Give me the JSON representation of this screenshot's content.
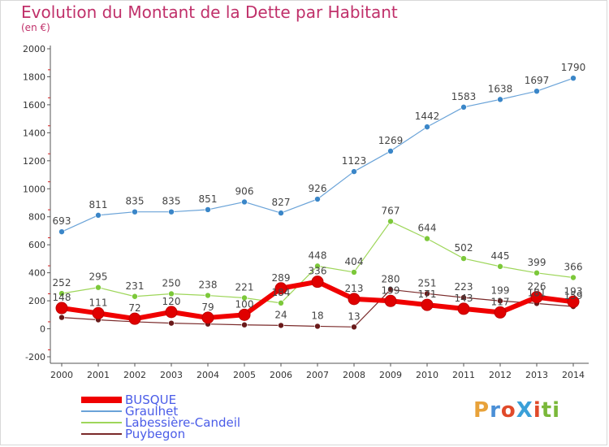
{
  "title": "Evolution du Montant de la Dette par Habitant",
  "subtitle": "(en €)",
  "logo": {
    "text": "ProXiti",
    "colors": [
      "#e8a23a",
      "#4a8fd6",
      "#e04a2a",
      "#3aa0d8",
      "#e04a2a",
      "#7ab83a",
      "#7ab83a"
    ]
  },
  "chart_data": {
    "type": "line",
    "x": [
      2000,
      2001,
      2002,
      2003,
      2004,
      2005,
      2006,
      2007,
      2008,
      2009,
      2010,
      2011,
      2012,
      2013,
      2014
    ],
    "ylim": [
      -200,
      2000
    ],
    "yticks": [
      -200,
      0,
      200,
      400,
      600,
      800,
      1000,
      1200,
      1400,
      1600,
      1800,
      2000
    ],
    "grid": false,
    "legend_position": "bottom-left",
    "series": [
      {
        "name": "Graulhet",
        "color": "#6aa3d8",
        "marker": "#3a86c8",
        "width": 1.2,
        "r": 3.5,
        "values": [
          693,
          811,
          835,
          835,
          851,
          906,
          827,
          926,
          1123,
          1269,
          1442,
          1583,
          1638,
          1697,
          1790
        ],
        "labels": [
          "693",
          "811",
          "835",
          "835",
          "851",
          "906",
          "827",
          "926",
          "1123",
          "1269",
          "1442",
          "1583",
          "1638",
          "1697",
          "1790"
        ]
      },
      {
        "name": "Labessière-Candeil",
        "color": "#9ed65a",
        "marker": "#7cc83a",
        "width": 1.2,
        "r": 3.5,
        "values": [
          252,
          295,
          231,
          250,
          238,
          221,
          184,
          448,
          404,
          767,
          644,
          502,
          445,
          399,
          366
        ],
        "labels": [
          "252",
          "295",
          "231",
          "250",
          "238",
          "221",
          "184",
          "448",
          "404",
          "767",
          "644",
          "502",
          "445",
          "399",
          "366"
        ]
      },
      {
        "name": "Puybegon",
        "color": "#7a2a2a",
        "marker": "#6a1a1a",
        "width": 1.2,
        "r": 3.5,
        "values": [
          81,
          64,
          50,
          40,
          34,
          28,
          24,
          18,
          13,
          280,
          251,
          223,
          199,
          181,
          159
        ],
        "labels": [
          "",
          "",
          "",
          "",
          "",
          "",
          "24",
          "18",
          "13",
          "280",
          "251",
          "223",
          "199",
          "181",
          "159"
        ]
      },
      {
        "name": "BUSQUE",
        "color": "#f00000",
        "marker": "#e00000",
        "width": 6,
        "r": 7,
        "values": [
          148,
          111,
          72,
          120,
          79,
          100,
          289,
          336,
          213,
          199,
          171,
          143,
          117,
          226,
          193
        ],
        "labels": [
          "148",
          "111",
          "72",
          "120",
          "79",
          "100",
          "289",
          "336",
          "213",
          "199",
          "171",
          "143",
          "117",
          "226",
          "193"
        ]
      }
    ],
    "legend": [
      "BUSQUE",
      "Graulhet",
      "Labessière-Candeil",
      "Puybegon"
    ]
  }
}
